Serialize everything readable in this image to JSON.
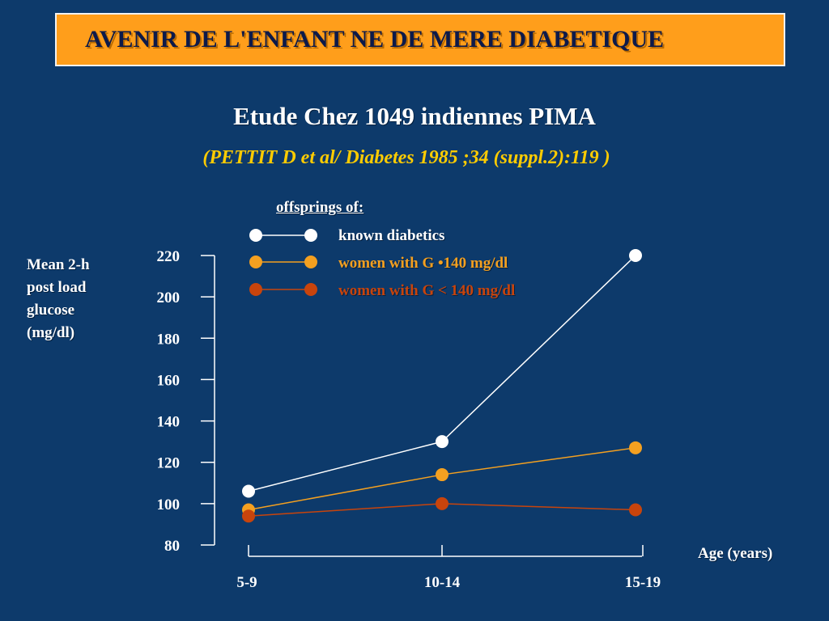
{
  "header": {
    "title": "AVENIR DE L'ENFANT NE DE MERE DIABETIQUE",
    "subtitle": "Etude Chez 1049 indiennes PIMA",
    "reference": "(PETTIT D et al/ Diabetes 1985 ;34 (suppl.2):119 )"
  },
  "colors": {
    "background": "#0d3a6b",
    "title_box": "#ff9e1b",
    "known_diabetics": "#ffffff",
    "women_ge_140": "#f4a020",
    "women_lt_140": "#c8440c",
    "reference_text": "#ffcc00"
  },
  "chart_data": {
    "type": "line",
    "ylabel": "Mean 2-h post load glucose (mg/dl)",
    "xlabel": "Age (years)",
    "legend_title": "offsprings of:",
    "categories": [
      "5-9",
      "10-14",
      "15-19"
    ],
    "ylim": [
      80,
      220
    ],
    "yticks": [
      "80",
      "100",
      "120",
      "140",
      "160",
      "180",
      "200",
      "220"
    ],
    "grid": false,
    "legend_position": "top",
    "series": [
      {
        "name": "known diabetics",
        "values": [
          106,
          130,
          220
        ]
      },
      {
        "name": "women with G •140 mg/dl",
        "values": [
          97,
          114,
          127
        ]
      },
      {
        "name": "women with G < 140 mg/dl",
        "values": [
          94,
          100,
          97
        ]
      }
    ]
  }
}
